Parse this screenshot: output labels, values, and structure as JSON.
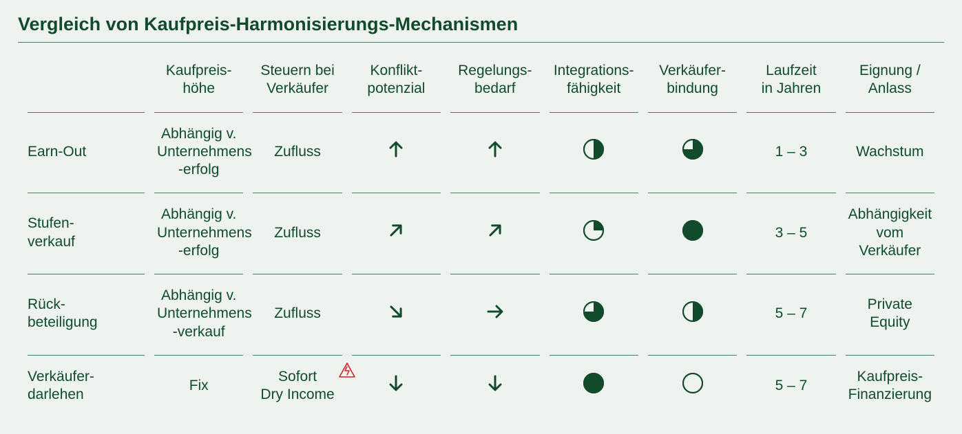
{
  "colors": {
    "green_dark": "#124a2c",
    "green_text": "#0f4b2c",
    "page_bg": "#eff3ef",
    "rule": "#4c7a5e",
    "red": "#d1202b"
  },
  "title": "Vergleich von Kaufpreis-Harmonisierungs-Mechanismen",
  "columns": {
    "kaufpreis_hoehe_l1": "Kaufpreis-",
    "kaufpreis_hoehe_l2": "höhe",
    "steuern_l1": "Steuern bei",
    "steuern_l2": "Verkäufer",
    "konflikt_l1": "Konflikt-",
    "konflikt_l2": "potenzial",
    "regelung_l1": "Regelungs-",
    "regelung_l2": "bedarf",
    "integration_l1": "Integrations-",
    "integration_l2": "fähigkeit",
    "bindung_l1": "Verkäufer-",
    "bindung_l2": "bindung",
    "laufzeit_l1": "Laufzeit",
    "laufzeit_l2": "in Jahren",
    "eignung_l1": "Eignung /",
    "eignung_l2": "Anlass"
  },
  "rows": [
    {
      "name": "earn-out",
      "label_l1": "Earn-Out",
      "label_l2": "",
      "kaufpreis_l1": "Abhängig v.",
      "kaufpreis_l2": "Unternehmens",
      "kaufpreis_l3": "-erfolg",
      "steuern_l1": "Zufluss",
      "steuern_l2": "",
      "steuern_warn": false,
      "konflikt_arrow": "up",
      "regelung_arrow": "up",
      "integration_fill": 0.5,
      "bindung_fill": 0.75,
      "laufzeit": "1 – 3",
      "eignung_l1": "Wachstum",
      "eignung_l2": ""
    },
    {
      "name": "stufenverkauf",
      "label_l1": "Stufen-",
      "label_l2": "verkauf",
      "kaufpreis_l1": "Abhängig v.",
      "kaufpreis_l2": "Unternehmens",
      "kaufpreis_l3": "-erfolg",
      "steuern_l1": "Zufluss",
      "steuern_l2": "",
      "steuern_warn": false,
      "konflikt_arrow": "up-right",
      "regelung_arrow": "up-right",
      "integration_fill": 0.25,
      "bindung_fill": 1.0,
      "laufzeit": "3 – 5",
      "eignung_l1": "Abhängigkeit",
      "eignung_l2": "vom Verkäufer"
    },
    {
      "name": "rueckbeteiligung",
      "label_l1": "Rück-",
      "label_l2": "beteiligung",
      "kaufpreis_l1": "Abhängig v.",
      "kaufpreis_l2": "Unternehmens",
      "kaufpreis_l3": "-verkauf",
      "steuern_l1": "Zufluss",
      "steuern_l2": "",
      "steuern_warn": false,
      "konflikt_arrow": "down-right",
      "regelung_arrow": "right",
      "integration_fill": 0.75,
      "bindung_fill": 0.5,
      "laufzeit": "5 – 7",
      "eignung_l1": "Private Equity",
      "eignung_l2": ""
    },
    {
      "name": "verkaeuferdarlehen",
      "label_l1": "Verkäufer-",
      "label_l2": "darlehen",
      "kaufpreis_l1": "Fix",
      "kaufpreis_l2": "",
      "kaufpreis_l3": "",
      "steuern_l1": "Sofort",
      "steuern_l2": "Dry Income",
      "steuern_warn": true,
      "konflikt_arrow": "down",
      "regelung_arrow": "down",
      "integration_fill": 1.0,
      "bindung_fill": 0.0,
      "laufzeit": "5 – 7",
      "eignung_l1": "Kaufpreis-",
      "eignung_l2": "Finanzierung"
    }
  ],
  "icons": {
    "arrow_stroke_width": 3,
    "harvey_radius": 14,
    "harvey_stroke_width": 2.2
  }
}
